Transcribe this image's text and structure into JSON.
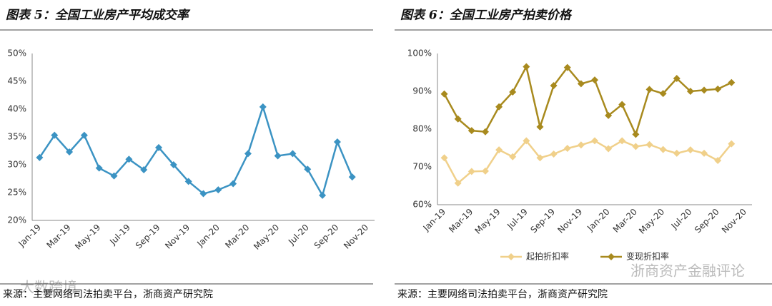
{
  "chart_data": [
    {
      "type": "line",
      "title": "图表 5：全国工业房产平均成交率",
      "note": "来源：主要网络司法拍卖平台，浙商资产研究院",
      "categories": [
        "Jan-19",
        null,
        "Mar-19",
        null,
        "May-19",
        null,
        "Jul-19",
        null,
        "Sep-19",
        null,
        "Nov-19",
        null,
        "Jan-20",
        null,
        "Mar-20",
        null,
        "May-20",
        null,
        "Jul-20",
        null,
        "Sep-20",
        null,
        "Nov-20"
      ],
      "series": [
        {
          "name": "平均成交率",
          "color": "#3b93c3",
          "values": [
            31.3,
            35.3,
            32.3,
            35.3,
            29.4,
            28,
            31,
            29.1,
            33.1,
            30,
            27,
            24.8,
            25.5,
            26.6,
            32,
            40.4,
            31.6,
            32,
            29.2,
            24.5,
            34.1,
            27.8,
            null
          ]
        }
      ],
      "ylim": [
        20,
        50
      ],
      "yticks": [
        {
          "value": 20,
          "label": "20%"
        },
        {
          "value": 25,
          "label": "25%"
        },
        {
          "value": 30,
          "label": "30%"
        },
        {
          "value": 35,
          "label": "35%"
        },
        {
          "value": 40,
          "label": "40%"
        },
        {
          "value": 45,
          "label": "45%"
        },
        {
          "value": 50,
          "label": "50%"
        }
      ],
      "legend": false
    },
    {
      "type": "line",
      "title": "图表 6：全国工业房产拍卖价格",
      "note": "来源：主要网络司法拍卖平台，浙商资产研究院",
      "categories": [
        "Jan-19",
        null,
        "Mar-19",
        null,
        "May-19",
        null,
        "Jul-19",
        null,
        "Sep-19",
        null,
        "Nov-19",
        null,
        "Jan-20",
        null,
        "Mar-20",
        null,
        "May-20",
        null,
        "Jul-20",
        null,
        "Sep-20",
        null,
        "Nov-20"
      ],
      "series": [
        {
          "name": "起拍折扣率",
          "color": "#f0d08a",
          "values": [
            72.4,
            65.7,
            68.8,
            68.9,
            74.5,
            72.7,
            76.9,
            72.4,
            73.4,
            74.9,
            75.8,
            76.9,
            74.8,
            76.9,
            75.4,
            75.9,
            74.6,
            73.6,
            74.5,
            73.6,
            71.7,
            76.1,
            null
          ]
        },
        {
          "name": "变现折扣率",
          "color": "#a88a1e",
          "values": [
            89.3,
            82.7,
            79.6,
            79.3,
            85.9,
            89.8,
            96.5,
            80.6,
            91.5,
            96.3,
            92,
            93,
            83.6,
            86.5,
            78.6,
            90.5,
            89.4,
            93.4,
            90,
            90.3,
            90.6,
            92.3,
            null
          ]
        }
      ],
      "ylim": [
        60,
        100
      ],
      "yticks": [
        {
          "value": 60,
          "label": "60%"
        },
        {
          "value": 70,
          "label": "70%"
        },
        {
          "value": 80,
          "label": "80%"
        },
        {
          "value": 90,
          "label": "90%"
        },
        {
          "value": 100,
          "label": "100%"
        }
      ],
      "legend": true
    }
  ],
  "watermarks": [
    "大数跨境",
    "浙商资产金融评论"
  ]
}
